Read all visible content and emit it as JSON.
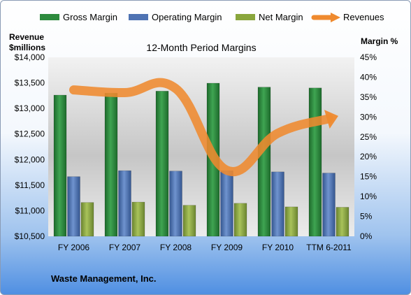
{
  "chart_data": {
    "type": "bar",
    "title": "12-Month Period Margins",
    "categories": [
      "FY 2006",
      "FY 2007",
      "FY 2008",
      "FY 2009",
      "FY 2010",
      "TTM 6-2011"
    ],
    "series": [
      {
        "name": "Gross Margin",
        "axis": "right",
        "values": [
          35.5,
          36.0,
          36.5,
          38.5,
          37.5,
          37.3
        ],
        "color": "#2e8b3e"
      },
      {
        "name": "Operating Margin",
        "axis": "right",
        "values": [
          15.0,
          16.5,
          16.4,
          16.5,
          16.2,
          15.9
        ],
        "color": "#4f73b3"
      },
      {
        "name": "Net Margin",
        "axis": "right",
        "values": [
          8.5,
          8.6,
          7.8,
          8.3,
          7.4,
          7.3
        ],
        "color": "#8aa63d"
      }
    ],
    "line_series": {
      "name": "Revenues",
      "axis": "left",
      "values": [
        13363,
        13310,
        13388,
        11791,
        12515,
        12800
      ],
      "color": "#ef8a2f"
    },
    "left_axis": {
      "label_line1": "Revenue",
      "label_line2": "$millions",
      "ylim": [
        10500,
        14000
      ],
      "ticks": [
        "$10,500",
        "$11,000",
        "$11,500",
        "$12,000",
        "$12,500",
        "$13,000",
        "$13,500",
        "$14,000"
      ]
    },
    "right_axis": {
      "label": "Margin %",
      "ylim": [
        0,
        45
      ],
      "ticks": [
        "0%",
        "5%",
        "10%",
        "15%",
        "20%",
        "25%",
        "30%",
        "35%",
        "40%",
        "45%"
      ]
    },
    "legend": "top",
    "grid": false
  },
  "footer": {
    "company": "Waste Management, Inc."
  }
}
